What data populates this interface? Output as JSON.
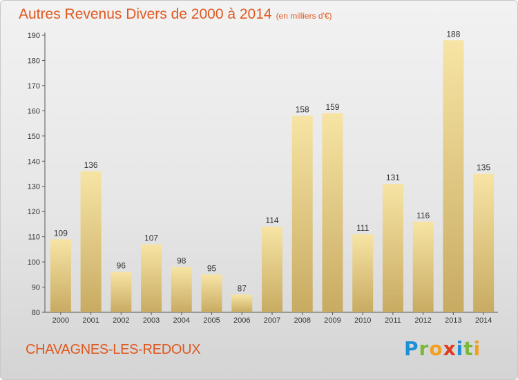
{
  "chart_data": {
    "type": "bar",
    "title": "Autres Revenus Divers de 2000 à 2014",
    "subtitle": "(en milliers d'€)",
    "categories": [
      "2000",
      "2001",
      "2002",
      "2003",
      "2004",
      "2005",
      "2006",
      "2007",
      "2008",
      "2009",
      "2010",
      "2011",
      "2012",
      "2013",
      "2014"
    ],
    "values": [
      109,
      136,
      96,
      107,
      98,
      95,
      87,
      114,
      158,
      159,
      111,
      131,
      116,
      188,
      135
    ],
    "ylim": [
      80,
      190
    ],
    "yticks": [
      80,
      90,
      100,
      110,
      120,
      130,
      140,
      150,
      160,
      170,
      180,
      190
    ],
    "grid": false,
    "bar_color_top": "#f7e4a4",
    "bar_color_bottom": "#c8ab62"
  },
  "footer": {
    "town": "CHAVAGNES-LES-REDOUX",
    "brand": "Proxiti"
  },
  "colors": {
    "title": "#e0581f"
  }
}
